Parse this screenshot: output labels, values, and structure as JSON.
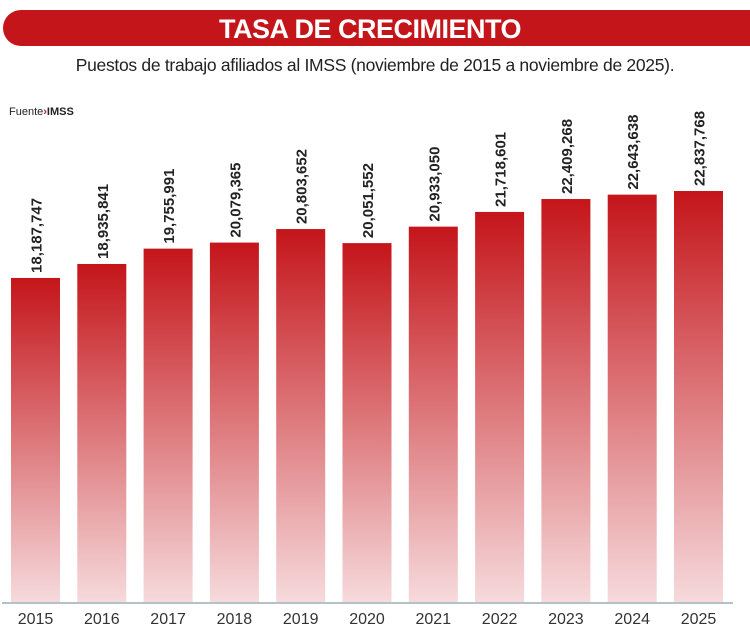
{
  "chart_data": {
    "type": "bar",
    "title": "TASA DE CRECIMIENTO",
    "subtitle": "Puestos de trabajo afiliados al IMSS (noviembre de 2015 a noviembre de 2025).",
    "source_label": "Fuente",
    "source_name": "IMSS",
    "categories": [
      "2015",
      "2016",
      "2017",
      "2018",
      "2019",
      "2020",
      "2021",
      "2022",
      "2023",
      "2024",
      "2025"
    ],
    "values": [
      18187747,
      18935841,
      19755991,
      20079365,
      20803652,
      20051552,
      20933050,
      21718601,
      22409268,
      22643638,
      22837768
    ],
    "value_labels": [
      "18,187,747",
      "18,935,841",
      "19,755,991",
      "20,079,365",
      "20,803,652",
      "20,051,552",
      "20,933,050",
      "21,718,601",
      "22,409,268",
      "22,643,638",
      "22,837,768"
    ],
    "xlabel": "",
    "ylabel": "",
    "ylim": [
      860000,
      26100000
    ],
    "grid": false,
    "colors": {
      "bar_top": "#c4151a",
      "bar_bottom": "#f6dadc",
      "banner": "#c4151a",
      "axis": "#b5c0c8"
    }
  }
}
